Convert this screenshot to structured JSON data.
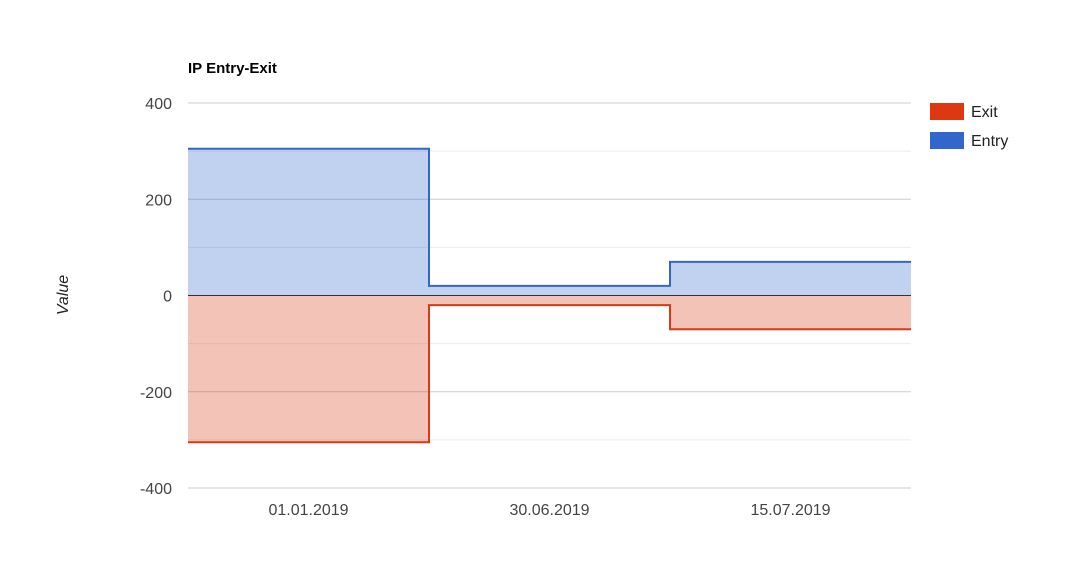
{
  "chart_data": {
    "type": "area",
    "step": true,
    "stacked": true,
    "title": "IP Entry-Exit",
    "xlabel": "",
    "ylabel": "Value",
    "categories": [
      "01.01.2019",
      "30.06.2019",
      "15.07.2019"
    ],
    "series": [
      {
        "name": "Exit",
        "values": [
          -305,
          -20,
          -70
        ],
        "color": "#dc3912"
      },
      {
        "name": "Entry",
        "values": [
          305,
          20,
          70
        ],
        "color": "#3366cc"
      }
    ],
    "ylim": [
      -400,
      400
    ],
    "y_ticks": [
      400,
      200,
      0,
      -200,
      -400
    ],
    "grid": true,
    "legend_position": "right"
  }
}
